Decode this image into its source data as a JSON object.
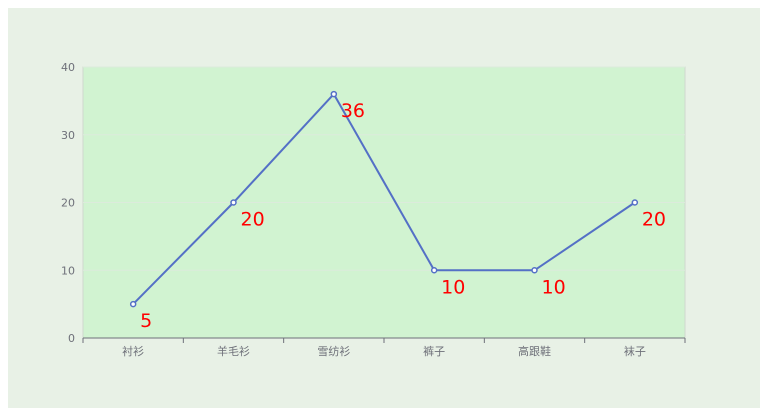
{
  "chart_data": {
    "type": "line",
    "categories": [
      "衬衫",
      "羊毛衫",
      "雪纺衫",
      "裤子",
      "高跟鞋",
      "袜子"
    ],
    "series": [
      {
        "values": [
          5,
          20,
          36,
          10,
          10,
          20
        ]
      }
    ],
    "yticks": [
      "0",
      "10",
      "20",
      "30",
      "40"
    ],
    "data_labels": [
      "5",
      "20",
      "36",
      "10",
      "10",
      "20"
    ],
    "ylim": [
      0,
      40
    ],
    "grid": true,
    "colors": {
      "line": "#5470c6",
      "label": "#ff0000",
      "plot_bg": "#d1f3d1",
      "page_bg": "#e8f1e6",
      "grid": "#dcebdc"
    }
  }
}
